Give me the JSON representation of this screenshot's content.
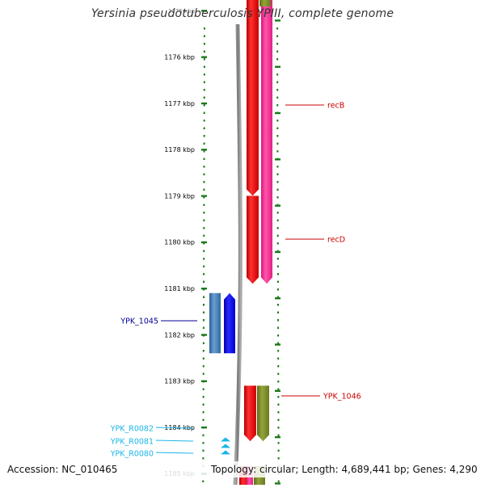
{
  "title": "Yersinia pseudotuberculosis YPIII, complete genome",
  "accession": "Accession: NC_010465",
  "summary": "Topology: circular; Length: 4,689,441 bp; Genes: 4,290",
  "colors": {
    "axis": "#1a7a1a",
    "backbone": "#888888",
    "red": "#ff0000",
    "pink": "#ff3399",
    "olive": "#7a8c2a",
    "blue": "#0000ee",
    "steelblue": "#3f7fbf",
    "cyan": "#19b5e6",
    "label_red": "#cc0000",
    "label_navy": "#000099",
    "label_cyan": "#19b5e6"
  },
  "ticks": [
    {
      "label": "1175 kbp",
      "kbp": 1175
    },
    {
      "label": "1176 kbp",
      "kbp": 1176
    },
    {
      "label": "1177 kbp",
      "kbp": 1177
    },
    {
      "label": "1178 kbp",
      "kbp": 1178
    },
    {
      "label": "1179 kbp",
      "kbp": 1179
    },
    {
      "label": "1180 kbp",
      "kbp": 1180
    },
    {
      "label": "1181 kbp",
      "kbp": 1181
    },
    {
      "label": "1182 kbp",
      "kbp": 1182
    },
    {
      "label": "1183 kbp",
      "kbp": 1183
    },
    {
      "label": "1184 kbp",
      "kbp": 1184
    },
    {
      "label": "1185 kbp",
      "kbp": 1185
    }
  ],
  "genes": [
    {
      "id": "recB",
      "label": "recB",
      "start_kbp": 1174.9,
      "end_kbp": 1179.0,
      "track": "red",
      "strand": "-",
      "color": "red"
    },
    {
      "id": "recD",
      "label": "recD",
      "start_kbp": 1179.0,
      "end_kbp": 1180.9,
      "track": "red",
      "strand": "-",
      "color": "red"
    },
    {
      "id": "recBD-pink",
      "label": "",
      "start_kbp": 1174.9,
      "end_kbp": 1180.9,
      "track": "pink",
      "strand": "-",
      "color": "pink"
    },
    {
      "id": "YPK_1045",
      "label": "YPK_1045",
      "start_kbp": 1181.1,
      "end_kbp": 1182.4,
      "track": "blue",
      "strand": "+",
      "color": "blue"
    },
    {
      "id": "YPK_1045-cog",
      "label": "",
      "start_kbp": 1181.1,
      "end_kbp": 1182.4,
      "track": "steel",
      "strand": "+",
      "color": "steelblue"
    },
    {
      "id": "YPK_1046",
      "label": "YPK_1046",
      "start_kbp": 1183.1,
      "end_kbp": 1184.3,
      "track": "red",
      "strand": "-",
      "color": "red"
    },
    {
      "id": "YPK_1046-cog",
      "label": "",
      "start_kbp": 1183.1,
      "end_kbp": 1184.3,
      "track": "pink",
      "strand": "-",
      "color": "olive"
    },
    {
      "id": "YPK_R0082",
      "label": "YPK_R0082",
      "start_kbp": 1184.24,
      "end_kbp": 1184.3,
      "track": "rna",
      "strand": "+",
      "color": "cyan"
    },
    {
      "id": "YPK_R0081",
      "label": "YPK_R0081",
      "start_kbp": 1184.38,
      "end_kbp": 1184.44,
      "track": "rna",
      "strand": "+",
      "color": "cyan"
    },
    {
      "id": "YPK_R0080",
      "label": "YPK_R0080",
      "start_kbp": 1184.52,
      "end_kbp": 1184.58,
      "track": "rna",
      "strand": "+",
      "color": "cyan"
    },
    {
      "id": "red-bottom",
      "label": "",
      "start_kbp": 1185.0,
      "end_kbp": 1185.3,
      "track": "red",
      "strand": "-",
      "color": "red"
    },
    {
      "id": "olive-bottom",
      "label": "",
      "start_kbp": 1185.0,
      "end_kbp": 1185.3,
      "track": "pink",
      "strand": "-",
      "color": "olive"
    },
    {
      "id": "olive-top",
      "label": "",
      "start_kbp": 1174.8,
      "end_kbp": 1174.95,
      "track": "pink",
      "strand": "-",
      "color": "olive"
    },
    {
      "id": "pink-bottom",
      "label": "",
      "start_kbp": 1185.0,
      "end_kbp": 1185.3,
      "track": "backbone-pink",
      "strand": "-",
      "color": "pink"
    }
  ]
}
